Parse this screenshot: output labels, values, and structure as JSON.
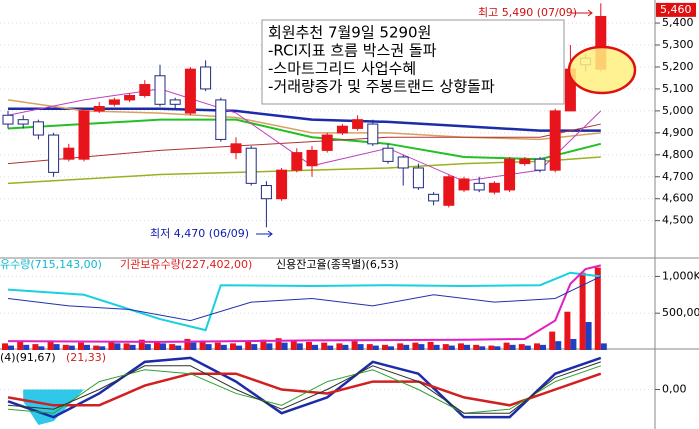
{
  "chart_data": [
    {
      "type": "candlestick",
      "ylim": [
        4330,
        5505
      ],
      "yticks": [
        {
          "value": 4500,
          "label": "4,500"
        },
        {
          "value": 4600,
          "label": "4,600"
        },
        {
          "value": 4700,
          "label": "4,700"
        },
        {
          "value": 4800,
          "label": "4,800"
        },
        {
          "value": 4900,
          "label": "4,900"
        },
        {
          "value": 5000,
          "label": "5,000"
        },
        {
          "value": 5100,
          "label": "5,100"
        },
        {
          "value": 5200,
          "label": "5,200"
        },
        {
          "value": 5300,
          "label": "5,300"
        },
        {
          "value": 5400,
          "label": "5,400"
        }
      ],
      "price_label": {
        "value": 5460,
        "label": "5,460"
      },
      "up_color": "#e8141c",
      "down_color": "#1f2a80",
      "candles": [
        {
          "open": 4980,
          "high": 5000,
          "low": 4920,
          "close": 4940
        },
        {
          "open": 4960,
          "high": 4980,
          "low": 4920,
          "close": 4940
        },
        {
          "open": 4950,
          "high": 4960,
          "low": 4870,
          "close": 4890
        },
        {
          "open": 4890,
          "high": 4900,
          "low": 4700,
          "close": 4720
        },
        {
          "open": 4780,
          "high": 4850,
          "low": 4770,
          "close": 4830
        },
        {
          "open": 4780,
          "high": 5010,
          "low": 4770,
          "close": 5000
        },
        {
          "open": 5000,
          "high": 5040,
          "low": 4990,
          "close": 5020
        },
        {
          "open": 5030,
          "high": 5060,
          "low": 5020,
          "close": 5050
        },
        {
          "open": 5050,
          "high": 5080,
          "low": 5040,
          "close": 5070
        },
        {
          "open": 5070,
          "high": 5140,
          "low": 5060,
          "close": 5120
        },
        {
          "open": 5160,
          "high": 5210,
          "low": 5020,
          "close": 5030
        },
        {
          "open": 5050,
          "high": 5060,
          "low": 5010,
          "close": 5030
        },
        {
          "open": 4990,
          "high": 5200,
          "low": 4980,
          "close": 5190
        },
        {
          "open": 5200,
          "high": 5230,
          "low": 5090,
          "close": 5100
        },
        {
          "open": 5050,
          "high": 5060,
          "low": 4860,
          "close": 4870
        },
        {
          "open": 4810,
          "high": 4880,
          "low": 4780,
          "close": 4850
        },
        {
          "open": 4830,
          "high": 4840,
          "low": 4660,
          "close": 4670
        },
        {
          "open": 4660,
          "high": 4680,
          "low": 4470,
          "close": 4600
        },
        {
          "open": 4600,
          "high": 4740,
          "low": 4590,
          "close": 4730
        },
        {
          "open": 4730,
          "high": 4830,
          "low": 4720,
          "close": 4810
        },
        {
          "open": 4750,
          "high": 4840,
          "low": 4700,
          "close": 4820
        },
        {
          "open": 4820,
          "high": 4900,
          "low": 4810,
          "close": 4890
        },
        {
          "open": 4900,
          "high": 4940,
          "low": 4890,
          "close": 4930
        },
        {
          "open": 4920,
          "high": 4980,
          "low": 4910,
          "close": 4960
        },
        {
          "open": 4940,
          "high": 4960,
          "low": 4840,
          "close": 4850
        },
        {
          "open": 4830,
          "high": 4850,
          "low": 4760,
          "close": 4770
        },
        {
          "open": 4790,
          "high": 4800,
          "low": 4660,
          "close": 4740
        },
        {
          "open": 4740,
          "high": 4760,
          "low": 4640,
          "close": 4650
        },
        {
          "open": 4620,
          "high": 4630,
          "low": 4570,
          "close": 4590
        },
        {
          "open": 4570,
          "high": 4710,
          "low": 4560,
          "close": 4700
        },
        {
          "open": 4640,
          "high": 4700,
          "low": 4630,
          "close": 4690
        },
        {
          "open": 4670,
          "high": 4700,
          "low": 4630,
          "close": 4640
        },
        {
          "open": 4630,
          "high": 4680,
          "low": 4620,
          "close": 4670
        },
        {
          "open": 4640,
          "high": 4790,
          "low": 4630,
          "close": 4780
        },
        {
          "open": 4760,
          "high": 4790,
          "low": 4750,
          "close": 4780
        },
        {
          "open": 4780,
          "high": 4790,
          "low": 4720,
          "close": 4730
        },
        {
          "open": 4730,
          "high": 5010,
          "low": 4720,
          "close": 5000
        },
        {
          "open": 5000,
          "high": 5300,
          "low": 5000,
          "close": 5190
        },
        {
          "open": 5240,
          "high": 5260,
          "low": 5180,
          "close": 5210
        },
        {
          "open": 5190,
          "high": 5490,
          "low": 5180,
          "close": 5430
        }
      ],
      "lines": [
        {
          "color": "#1c2ca8",
          "width": 2.5,
          "x": [
            0,
            5,
            10,
            15,
            20,
            25,
            30,
            35,
            39
          ],
          "values": [
            5010,
            5010,
            5010,
            5000,
            4960,
            4950,
            4930,
            4910,
            4910
          ]
        },
        {
          "color": "#d8a060",
          "width": 1.5,
          "x": [
            0,
            5,
            10,
            15,
            20,
            25,
            30,
            35,
            39
          ],
          "values": [
            5050,
            5000,
            4990,
            4970,
            4900,
            4900,
            4880,
            4870,
            4900
          ]
        },
        {
          "color": "#22c022",
          "width": 2,
          "x": [
            0,
            5,
            10,
            15,
            20,
            25,
            30,
            35,
            39
          ],
          "values": [
            4920,
            4940,
            4960,
            4960,
            4880,
            4850,
            4790,
            4780,
            4850
          ]
        },
        {
          "color": "#9cb020",
          "width": 1.5,
          "x": [
            0,
            5,
            10,
            15,
            20,
            25,
            30,
            35,
            39
          ],
          "values": [
            4670,
            4690,
            4710,
            4720,
            4730,
            4740,
            4760,
            4770,
            4790
          ]
        },
        {
          "color": "#b03030",
          "width": 1,
          "x": [
            0,
            5,
            10,
            15,
            20,
            25,
            30,
            35,
            39
          ],
          "values": [
            4760,
            4790,
            4820,
            4840,
            4860,
            4880,
            4880,
            4880,
            4940
          ]
        },
        {
          "color": "#c040c0",
          "width": 1,
          "x": [
            0,
            5,
            10,
            15,
            20,
            25,
            30,
            35,
            39
          ],
          "values": [
            4980,
            5050,
            5100,
            4990,
            4750,
            4830,
            4680,
            4730,
            5000
          ]
        }
      ],
      "annotations": {
        "high": "최고 5,490 (07/09)",
        "low": "최저 4,470 (06/09)",
        "note": [
          "회원추천 7월9일 5290원",
          "-RCI지표 흐름 박스권 돌파",
          "-스마트그리드 사업수혜",
          "-거래량증가 및 주봉트랜드 상향돌파"
        ]
      }
    },
    {
      "type": "bar",
      "ylim": [
        0,
        1250000
      ],
      "yticks": [
        {
          "value": 500000,
          "label": "500,000"
        },
        {
          "value": 1000000,
          "label": "1,000K"
        }
      ],
      "series": [
        {
          "color": "#e8141c",
          "values": [
            90000,
            110000,
            80000,
            130000,
            70000,
            100000,
            60000,
            120000,
            90000,
            140000,
            110000,
            80000,
            150000,
            130000,
            100000,
            90000,
            120000,
            140000,
            160000,
            130000,
            110000,
            100000,
            90000,
            120000,
            80000,
            70000,
            90000,
            100000,
            110000,
            80000,
            90000,
            70000,
            60000,
            100000,
            80000,
            90000,
            250000,
            520000,
            1050000,
            1120000
          ]
        },
        {
          "color": "#2040c0",
          "values": [
            60000,
            70000,
            50000,
            80000,
            60000,
            70000,
            50000,
            90000,
            70000,
            80000,
            90000,
            60000,
            100000,
            80000,
            70000,
            60000,
            80000,
            90000,
            100000,
            90000,
            70000,
            60000,
            70000,
            80000,
            60000,
            50000,
            70000,
            80000,
            70000,
            60000,
            70000,
            50000,
            50000,
            70000,
            60000,
            70000,
            120000,
            150000,
            380000,
            90000
          ]
        }
      ],
      "lines": [
        {
          "name": "유수량(715,143,00)",
          "color": "#18d0e0",
          "width": 2,
          "x": [
            0,
            5,
            10,
            13,
            14,
            20,
            25,
            30,
            35,
            37,
            39
          ],
          "values": [
            820000,
            750000,
            420000,
            270000,
            880000,
            870000,
            880000,
            870000,
            880000,
            1050000,
            1000000
          ]
        },
        {
          "name": "기관보유수량(227,402,00)",
          "color": "#e020c0",
          "width": 2,
          "x": [
            0,
            10,
            20,
            30,
            34,
            36,
            37,
            38,
            39
          ],
          "values": [
            120000,
            110000,
            130000,
            140000,
            150000,
            400000,
            900000,
            1100000,
            1150000
          ]
        },
        {
          "name": "신용잔고율(종목별)(6,53)",
          "color": "#2030b0",
          "width": 1,
          "x": [
            0,
            4,
            8,
            12,
            16,
            20,
            24,
            28,
            32,
            36,
            39
          ],
          "values": [
            700000,
            600000,
            550000,
            400000,
            650000,
            700000,
            600000,
            750000,
            650000,
            700000,
            1000000
          ]
        }
      ]
    },
    {
      "type": "line",
      "ylim": [
        -100,
        100
      ],
      "yticks": [
        {
          "value": 0,
          "label": "0,00"
        }
      ],
      "area": {
        "color": "#30c8e8",
        "x": [
          1,
          2,
          3,
          4,
          5
        ],
        "values": [
          -30,
          -90,
          -80,
          -40,
          0
        ]
      },
      "lines": [
        {
          "name": "(4)(91,67)",
          "color": "#1c2ca8",
          "width": 2.5,
          "x": [
            0,
            3,
            6,
            9,
            12,
            15,
            18,
            21,
            24,
            27,
            30,
            33,
            36,
            39
          ],
          "values": [
            -30,
            -70,
            -10,
            70,
            80,
            20,
            -60,
            -20,
            70,
            40,
            -70,
            -70,
            40,
            80
          ]
        },
        {
          "name": "(21,33)",
          "color": "#d02020",
          "width": 2.5,
          "x": [
            0,
            3,
            6,
            9,
            12,
            15,
            18,
            21,
            24,
            27,
            30,
            33,
            36,
            39
          ],
          "values": [
            -20,
            -40,
            -40,
            10,
            40,
            40,
            0,
            -10,
            20,
            20,
            -20,
            -40,
            0,
            40
          ]
        },
        {
          "color": "#30a030",
          "width": 1,
          "x": [
            0,
            3,
            6,
            9,
            12,
            15,
            18,
            21,
            24,
            27,
            30,
            33,
            36,
            39
          ],
          "values": [
            -50,
            -60,
            20,
            50,
            40,
            -10,
            -40,
            20,
            50,
            0,
            -60,
            -50,
            20,
            60
          ]
        },
        {
          "color": "#303030",
          "width": 1,
          "x": [
            0,
            3,
            6,
            9,
            12,
            15,
            18,
            21,
            24,
            27,
            30,
            33,
            36,
            39
          ],
          "values": [
            -40,
            -50,
            0,
            60,
            60,
            0,
            -50,
            0,
            60,
            20,
            -60,
            -60,
            30,
            70
          ]
        }
      ]
    }
  ]
}
